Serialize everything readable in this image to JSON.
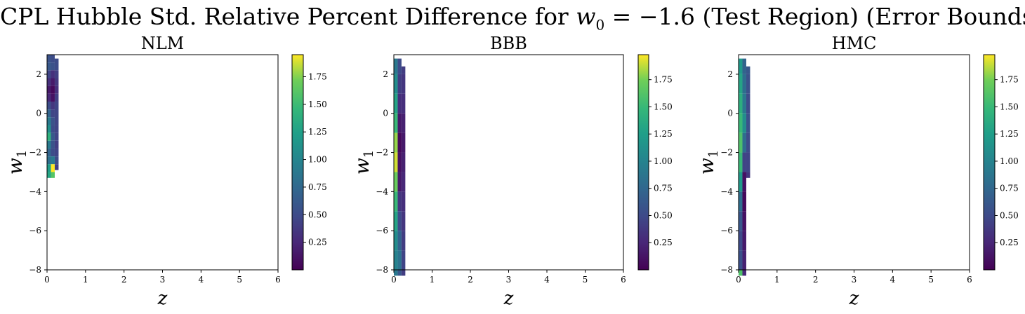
{
  "figure": {
    "title_prefix": "CPL Hubble Std. Relative Percent Difference for ",
    "title_math": "w",
    "title_math_sub": "0",
    "title_eq": " = −1.6",
    "title_suffix": " (Test Region) (Error Bounds)"
  },
  "colormap": "viridis",
  "chart_data": [
    {
      "type": "heatmap",
      "title": "NLM",
      "xlabel": "z",
      "ylabel": "w",
      "ylabel_sub": "1",
      "xlim": [
        0,
        6
      ],
      "ylim": [
        -8,
        3
      ],
      "xticks": [
        0,
        1,
        2,
        3,
        4,
        5,
        6
      ],
      "yticks": [
        -8,
        -6,
        -4,
        -2,
        0,
        2
      ],
      "cbar_lim": [
        0,
        1.95
      ],
      "cbar_ticks": [
        0.25,
        0.5,
        0.75,
        1.0,
        1.25,
        1.5,
        1.75
      ],
      "cbar_ticklabels": [
        "0.25",
        "0.50",
        "0.75",
        "1.00",
        "1.25",
        "1.50",
        "1.75"
      ],
      "z_range": [
        0,
        0.3
      ],
      "w1_range": [
        -3.1,
        3.0
      ],
      "columns": [
        {
          "z": 0.05,
          "w1_values": [
            [
              3.0,
              0.55
            ],
            [
              2.6,
              0.6
            ],
            [
              2.2,
              0.45
            ],
            [
              1.8,
              0.3
            ],
            [
              1.4,
              0.15
            ],
            [
              1.0,
              0.25
            ],
            [
              0.6,
              0.5
            ],
            [
              0.2,
              0.7
            ],
            [
              -0.2,
              0.9
            ],
            [
              -0.6,
              1.1
            ],
            [
              -1.0,
              1.4
            ],
            [
              -1.4,
              0.9
            ],
            [
              -1.8,
              0.7
            ],
            [
              -2.2,
              0.8
            ],
            [
              -2.6,
              1.2
            ],
            [
              -3.0,
              1.3
            ]
          ]
        },
        {
          "z": 0.15,
          "w1_values": [
            [
              3.0,
              0.5
            ],
            [
              2.6,
              0.55
            ],
            [
              2.2,
              0.3
            ],
            [
              1.8,
              0.15
            ],
            [
              1.4,
              0.05
            ],
            [
              1.0,
              0.1
            ],
            [
              0.6,
              0.35
            ],
            [
              0.2,
              0.45
            ],
            [
              -0.2,
              0.55
            ],
            [
              -0.6,
              0.5
            ],
            [
              -1.0,
              0.6
            ],
            [
              -1.4,
              0.55
            ],
            [
              -1.8,
              0.5
            ],
            [
              -2.2,
              0.9
            ],
            [
              -2.6,
              1.95
            ],
            [
              -3.0,
              1.6
            ]
          ]
        },
        {
          "z": 0.25,
          "w1_values": [
            [
              2.8,
              0.5
            ],
            [
              2.2,
              0.4
            ],
            [
              1.8,
              0.35
            ],
            [
              1.4,
              0.3
            ],
            [
              1.0,
              0.4
            ],
            [
              0.6,
              0.45
            ],
            [
              -0.6,
              0.45
            ],
            [
              -1.0,
              0.45
            ],
            [
              -1.4,
              0.4
            ],
            [
              -1.8,
              0.45
            ],
            [
              -2.2,
              0.5
            ],
            [
              -2.6,
              0.4
            ]
          ]
        }
      ]
    },
    {
      "type": "heatmap",
      "title": "BBB",
      "xlabel": "z",
      "ylabel": "w",
      "ylabel_sub": "1",
      "xlim": [
        0,
        6
      ],
      "ylim": [
        -8,
        3
      ],
      "xticks": [
        0,
        1,
        2,
        3,
        4,
        5,
        6
      ],
      "yticks": [
        -8,
        -6,
        -4,
        -2,
        0,
        2
      ],
      "cbar_lim": [
        0,
        1.98
      ],
      "cbar_ticks": [
        0.25,
        0.5,
        0.75,
        1.0,
        1.25,
        1.5,
        1.75
      ],
      "cbar_ticklabels": [
        "0.25",
        "0.50",
        "0.75",
        "1.00",
        "1.25",
        "1.50",
        "1.75"
      ],
      "z_range": [
        0,
        0.3
      ],
      "w1_range": [
        -8.0,
        3.0
      ],
      "columns": [
        {
          "z": 0.05,
          "w1_values": [
            [
              2.8,
              0.9
            ],
            [
              2.0,
              1.1
            ],
            [
              1.0,
              1.3
            ],
            [
              0.0,
              1.5
            ],
            [
              -1.0,
              1.8
            ],
            [
              -2.0,
              1.9
            ],
            [
              -3.0,
              1.7
            ],
            [
              -4.0,
              1.5
            ],
            [
              -5.0,
              1.3
            ],
            [
              -6.0,
              1.1
            ],
            [
              -7.0,
              1.0
            ],
            [
              -8.0,
              0.9
            ]
          ]
        },
        {
          "z": 0.15,
          "w1_values": [
            [
              2.8,
              0.5
            ],
            [
              2.0,
              0.4
            ],
            [
              1.0,
              0.3
            ],
            [
              0.0,
              0.15
            ],
            [
              -1.0,
              0.05
            ],
            [
              -2.0,
              0.1
            ],
            [
              -3.0,
              0.15
            ],
            [
              -4.0,
              0.35
            ],
            [
              -5.0,
              0.5
            ],
            [
              -6.0,
              0.7
            ],
            [
              -7.0,
              0.85
            ],
            [
              -8.0,
              0.6
            ]
          ]
        },
        {
          "z": 0.25,
          "w1_values": [
            [
              2.4,
              0.4
            ],
            [
              2.0,
              0.35
            ],
            [
              1.0,
              0.3
            ],
            [
              0.0,
              0.2
            ],
            [
              -1.0,
              0.15
            ],
            [
              -2.0,
              0.2
            ],
            [
              -3.0,
              0.25
            ],
            [
              -4.0,
              0.3
            ],
            [
              -5.0,
              0.35
            ],
            [
              -6.0,
              0.4
            ],
            [
              -7.0,
              0.45
            ],
            [
              -8.0,
              0.4
            ]
          ]
        }
      ]
    },
    {
      "type": "heatmap",
      "title": "HMC",
      "xlabel": "z",
      "ylabel": "w",
      "ylabel_sub": "1",
      "xlim": [
        0,
        6
      ],
      "ylim": [
        -8,
        3
      ],
      "xticks": [
        0,
        1,
        2,
        3,
        4,
        5,
        6
      ],
      "yticks": [
        -8,
        -6,
        -4,
        -2,
        0,
        2
      ],
      "cbar_lim": [
        0,
        1.98
      ],
      "cbar_ticks": [
        0.25,
        0.5,
        0.75,
        1.0,
        1.25,
        1.5,
        1.75
      ],
      "cbar_ticklabels": [
        "0.25",
        "0.50",
        "0.75",
        "1.00",
        "1.25",
        "1.50",
        "1.75"
      ],
      "z_range": [
        0,
        0.3
      ],
      "w1_range": [
        -8.0,
        3.0
      ],
      "columns": [
        {
          "z": 0.05,
          "w1_values": [
            [
              2.8,
              1.2
            ],
            [
              2.0,
              1.3
            ],
            [
              1.0,
              1.4
            ],
            [
              0.0,
              1.5
            ],
            [
              -1.0,
              1.6
            ],
            [
              -2.0,
              1.5
            ],
            [
              -3.0,
              1.2
            ],
            [
              -4.0,
              0.8
            ],
            [
              -5.0,
              0.6
            ],
            [
              -6.0,
              0.5
            ],
            [
              -7.0,
              0.55
            ],
            [
              -8.0,
              1.6
            ]
          ]
        },
        {
          "z": 0.15,
          "w1_values": [
            [
              2.8,
              0.7
            ],
            [
              2.0,
              0.8
            ],
            [
              1.0,
              0.9
            ],
            [
              0.0,
              1.1
            ],
            [
              -1.0,
              0.8
            ],
            [
              -2.0,
              0.45
            ],
            [
              -3.0,
              0.1
            ],
            [
              -4.0,
              0.05
            ],
            [
              -5.0,
              0.1
            ],
            [
              -6.0,
              0.15
            ],
            [
              -7.0,
              0.2
            ],
            [
              -8.0,
              0.25
            ]
          ]
        },
        {
          "z": 0.25,
          "w1_values": [
            [
              2.4,
              0.6
            ],
            [
              2.0,
              0.55
            ],
            [
              1.0,
              0.5
            ],
            [
              0.0,
              0.55
            ],
            [
              -1.0,
              0.5
            ],
            [
              -2.0,
              0.45
            ],
            [
              -3.0,
              0.35
            ]
          ]
        }
      ]
    }
  ]
}
